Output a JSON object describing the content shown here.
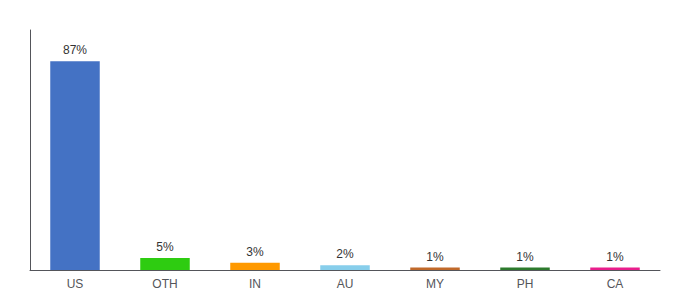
{
  "chart_data": {
    "type": "bar",
    "categories": [
      "US",
      "OTH",
      "IN",
      "AU",
      "MY",
      "PH",
      "CA"
    ],
    "values": [
      87,
      5,
      3,
      2,
      1,
      1,
      1
    ],
    "value_labels": [
      "87%",
      "5%",
      "3%",
      "2%",
      "1%",
      "1%",
      "1%"
    ],
    "colors": [
      "#4472c4",
      "#2ecc11",
      "#ff9900",
      "#87ceeb",
      "#c0692a",
      "#2d7a2d",
      "#e91e8c"
    ],
    "ylim": [
      0,
      100
    ],
    "grid": false,
    "data_labels": true,
    "tick_labels": "x"
  }
}
